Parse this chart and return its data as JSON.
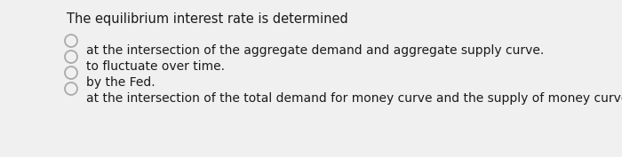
{
  "background_color": "#f0f0f0",
  "title": "The equilibrium interest rate is determined",
  "title_fontsize": 10.5,
  "title_color": "#1a1a1a",
  "options": [
    "at the intersection of the aggregate demand and aggregate supply curve.",
    "to fluctuate over time.",
    "by the Fed.",
    "at the intersection of the total demand for money curve and the supply of money curve."
  ],
  "option_fontsize": 10.0,
  "option_color": "#1a1a1a",
  "circle_color": "#aaaaaa",
  "circle_linewidth": 1.3
}
